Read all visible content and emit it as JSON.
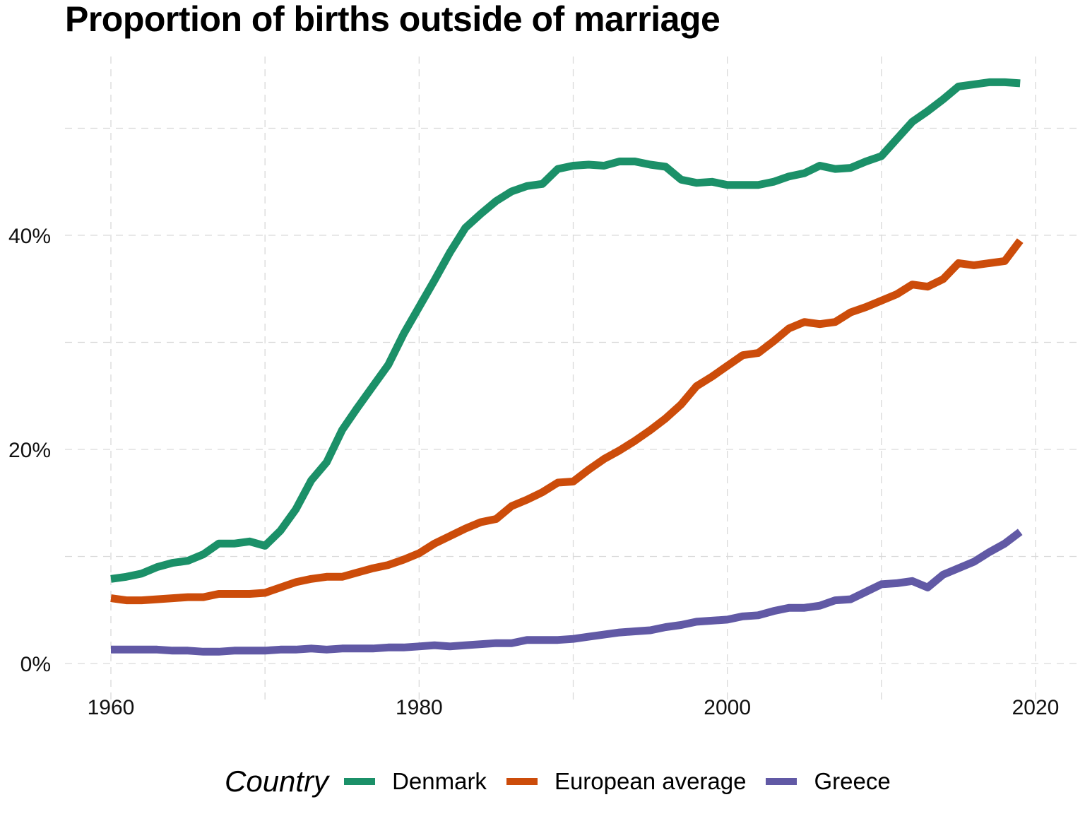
{
  "chart_data": {
    "type": "line",
    "title": "Proportion of births outside of marriage",
    "xlabel": "",
    "ylabel": "",
    "xlim": [
      1957,
      2023
    ],
    "ylim": [
      -3,
      56
    ],
    "x_ticks": [
      1960,
      1980,
      2000,
      2020
    ],
    "x_tick_labels": [
      "1960",
      "1980",
      "2000",
      "2020"
    ],
    "x_minor_gridlines": [
      1970,
      1990,
      2010
    ],
    "y_ticks": [
      0,
      20,
      40
    ],
    "y_tick_labels": [
      "0%",
      "20%",
      "40%"
    ],
    "y_minor_gridlines": [
      10,
      30,
      50
    ],
    "grid": true,
    "legend": {
      "title": "Country",
      "placement": "bottom"
    },
    "x": [
      1960,
      1961,
      1962,
      1963,
      1964,
      1965,
      1966,
      1967,
      1968,
      1969,
      1970,
      1971,
      1972,
      1973,
      1974,
      1975,
      1976,
      1977,
      1978,
      1979,
      1980,
      1981,
      1982,
      1983,
      1984,
      1985,
      1986,
      1987,
      1988,
      1989,
      1990,
      1991,
      1992,
      1993,
      1994,
      1995,
      1996,
      1997,
      1998,
      1999,
      2000,
      2001,
      2002,
      2003,
      2004,
      2005,
      2006,
      2007,
      2008,
      2009,
      2010,
      2011,
      2012,
      2013,
      2014,
      2015,
      2016,
      2017,
      2018,
      2019
    ],
    "series": [
      {
        "name": "Denmark",
        "color": "#1b9068",
        "values": [
          7.9,
          8.1,
          8.4,
          9.0,
          9.4,
          9.6,
          10.2,
          11.2,
          11.2,
          11.4,
          11.0,
          12.4,
          14.4,
          17.1,
          18.8,
          21.8,
          23.9,
          25.9,
          27.9,
          30.8,
          33.3,
          35.8,
          38.4,
          40.7,
          42.0,
          43.2,
          44.1,
          44.6,
          44.8,
          46.2,
          46.5,
          46.6,
          46.5,
          46.9,
          46.9,
          46.6,
          46.4,
          45.2,
          44.9,
          45.0,
          44.7,
          44.7,
          44.7,
          45.0,
          45.5,
          45.8,
          46.5,
          46.2,
          46.3,
          46.9,
          47.4,
          49.0,
          50.6,
          51.6,
          52.7,
          53.9,
          54.1,
          54.3,
          54.3,
          54.2
        ]
      },
      {
        "name": "European average",
        "color": "#cc4c0a",
        "values": [
          6.1,
          5.9,
          5.9,
          6.0,
          6.1,
          6.2,
          6.2,
          6.5,
          6.5,
          6.5,
          6.6,
          7.1,
          7.6,
          7.9,
          8.1,
          8.1,
          8.5,
          8.9,
          9.2,
          9.7,
          10.3,
          11.2,
          11.9,
          12.6,
          13.2,
          13.5,
          14.7,
          15.3,
          16.0,
          16.9,
          17.0,
          18.1,
          19.1,
          19.9,
          20.8,
          21.8,
          22.9,
          24.2,
          25.9,
          26.8,
          27.8,
          28.8,
          29.0,
          30.1,
          31.3,
          31.9,
          31.7,
          31.9,
          32.8,
          33.3,
          33.9,
          34.5,
          35.4,
          35.2,
          35.9,
          37.4,
          37.2,
          37.4,
          37.6,
          39.5
        ]
      },
      {
        "name": "Greece",
        "color": "#6159a5",
        "values": [
          1.3,
          1.3,
          1.3,
          1.3,
          1.2,
          1.2,
          1.1,
          1.1,
          1.2,
          1.2,
          1.2,
          1.3,
          1.3,
          1.4,
          1.3,
          1.4,
          1.4,
          1.4,
          1.5,
          1.5,
          1.6,
          1.7,
          1.6,
          1.7,
          1.8,
          1.9,
          1.9,
          2.2,
          2.2,
          2.2,
          2.3,
          2.5,
          2.7,
          2.9,
          3.0,
          3.1,
          3.4,
          3.6,
          3.9,
          4.0,
          4.1,
          4.4,
          4.5,
          4.9,
          5.2,
          5.2,
          5.4,
          5.9,
          6.0,
          6.7,
          7.4,
          7.5,
          7.7,
          7.1,
          8.3,
          8.9,
          9.5,
          10.4,
          11.2,
          12.3
        ]
      }
    ]
  }
}
